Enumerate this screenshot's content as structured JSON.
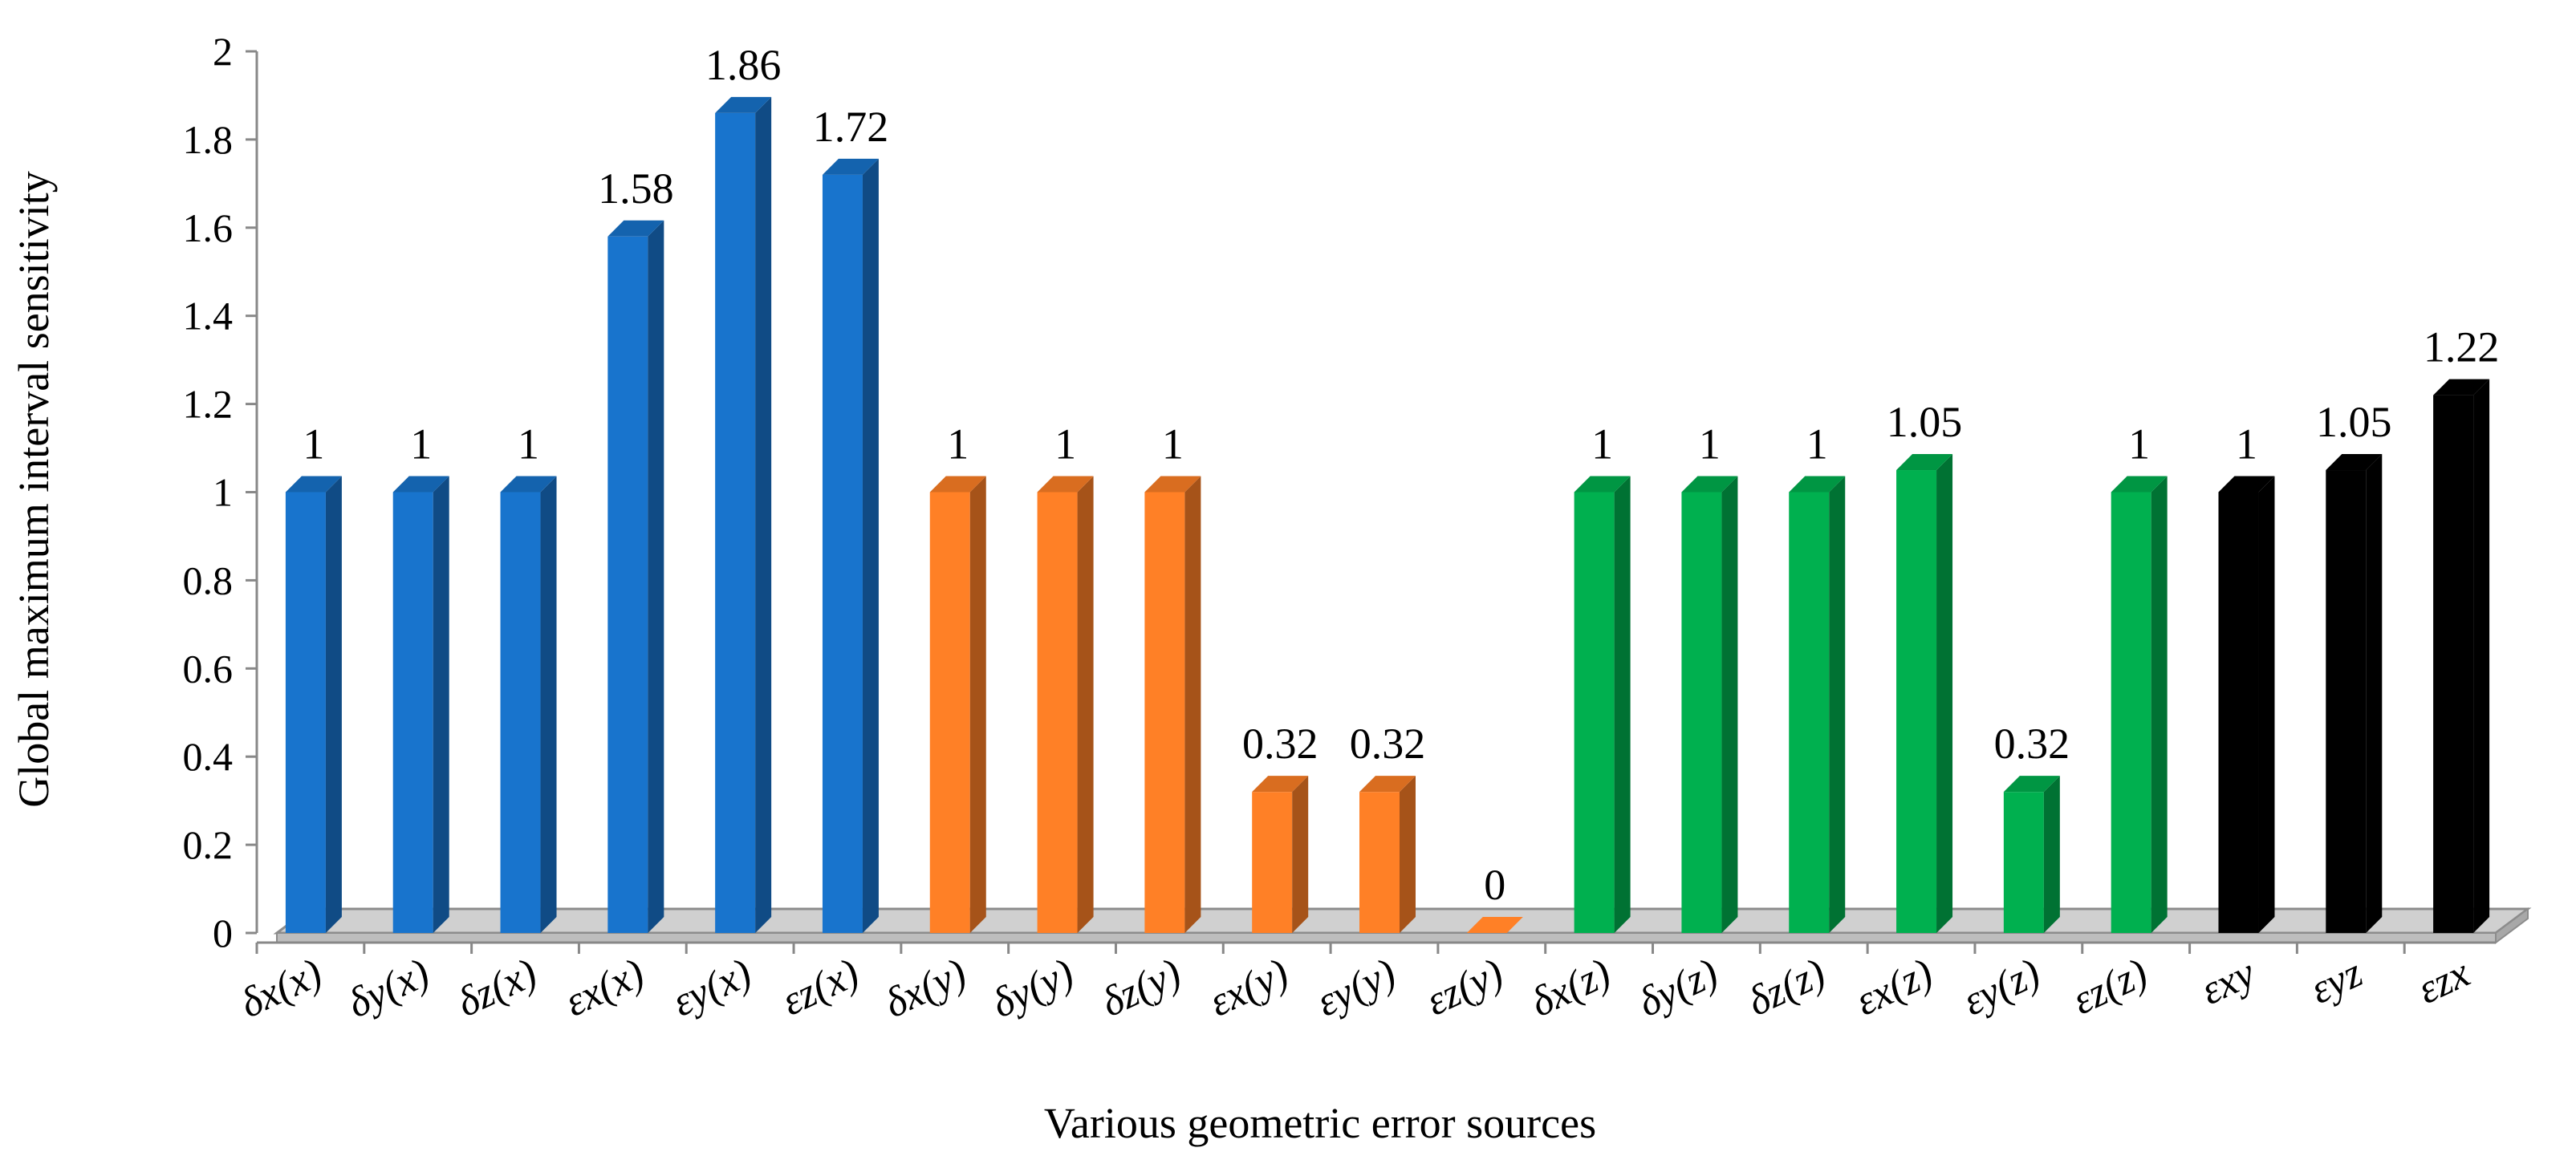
{
  "chart_data": {
    "type": "bar",
    "title": "",
    "xlabel": "Various geometric error sources",
    "ylabel": "Global maximum interval sensitivity",
    "ylim": [
      0,
      2
    ],
    "yticks": [
      "0",
      "0.2",
      "0.4",
      "0.6",
      "0.8",
      "1",
      "1.2",
      "1.4",
      "1.6",
      "1.8",
      "2"
    ],
    "grid": false,
    "style": "3d-column",
    "categories": [
      "δx(x)",
      "δy(x)",
      "δz(x)",
      "εx(x)",
      "εy(x)",
      "εz(x)",
      "δx(y)",
      "δy(y)",
      "δz(y)",
      "εx(y)",
      "εy(y)",
      "εz(y)",
      "δx(z)",
      "δy(z)",
      "δz(z)",
      "εx(z)",
      "εy(z)",
      "εz(z)",
      "εxy",
      "εyz",
      "εzx"
    ],
    "values": [
      1,
      1,
      1,
      1.58,
      1.86,
      1.72,
      1,
      1,
      1,
      0.32,
      0.32,
      0,
      1,
      1,
      1,
      1.05,
      0.32,
      1,
      1,
      1.05,
      1.22
    ],
    "value_labels": [
      "1",
      "1",
      "1",
      "1.58",
      "1.86",
      "1.72",
      "1",
      "1",
      "1",
      "0.32",
      "0.32",
      "0",
      "1",
      "1",
      "1",
      "1.05",
      "0.32",
      "1",
      "1",
      "1.05",
      "1.22"
    ],
    "group_colors": [
      "#1874CD",
      "#1874CD",
      "#1874CD",
      "#1874CD",
      "#1874CD",
      "#1874CD",
      "#FF8026",
      "#FF8026",
      "#FF8026",
      "#FF8026",
      "#FF8026",
      "#FF8026",
      "#00B04F",
      "#00B04F",
      "#00B04F",
      "#00B04F",
      "#00B04F",
      "#00B04F",
      "#000000",
      "#000000",
      "#000000"
    ]
  }
}
